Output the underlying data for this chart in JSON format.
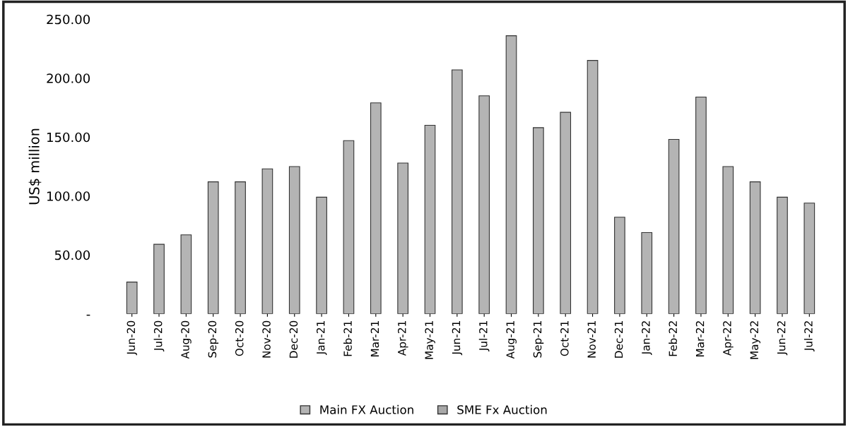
{
  "chart_data": {
    "type": "bar",
    "ylabel": "US$ million",
    "categories": [
      "Jun-20",
      "Jul-20",
      "Aug-20",
      "Sep-20",
      "Oct-20",
      "Nov-20",
      "Dec-20",
      "Jan-21",
      "Feb-21",
      "Mar-21",
      "Apr-21",
      "May-21",
      "Jun-21",
      "Jul-21",
      "Aug-21",
      "Sep-21",
      "Oct-21",
      "Nov-21",
      "Dec-21",
      "Jan-22",
      "Feb-22",
      "Mar-22",
      "Apr-22",
      "May-22",
      "Jun-22",
      "Jul-22"
    ],
    "series": [
      {
        "name": "Main FX Auction",
        "color": "#b4b4b4",
        "values": [
          27,
          59,
          67,
          112,
          112,
          123,
          125,
          99,
          147,
          179,
          128,
          160,
          207,
          185,
          236,
          158,
          171,
          215,
          82,
          69,
          148,
          184,
          125,
          112,
          99,
          94
        ]
      },
      {
        "name": "SME Fx Auction",
        "color": "#a8a8a8",
        "values": [
          null,
          null,
          null,
          null,
          null,
          null,
          null,
          null,
          null,
          null,
          null,
          null,
          null,
          null,
          null,
          null,
          null,
          null,
          null,
          null,
          null,
          null,
          null,
          null,
          null,
          null
        ]
      }
    ],
    "ylim": [
      0,
      250
    ],
    "yticks": [
      {
        "value": 0,
        "label": "-"
      },
      {
        "value": 50,
        "label": "50.00"
      },
      {
        "value": 100,
        "label": "100.00"
      },
      {
        "value": 150,
        "label": "150.00"
      },
      {
        "value": 200,
        "label": "200.00"
      },
      {
        "value": 250,
        "label": "250.00"
      }
    ],
    "grid": false,
    "legend": "bottom"
  }
}
